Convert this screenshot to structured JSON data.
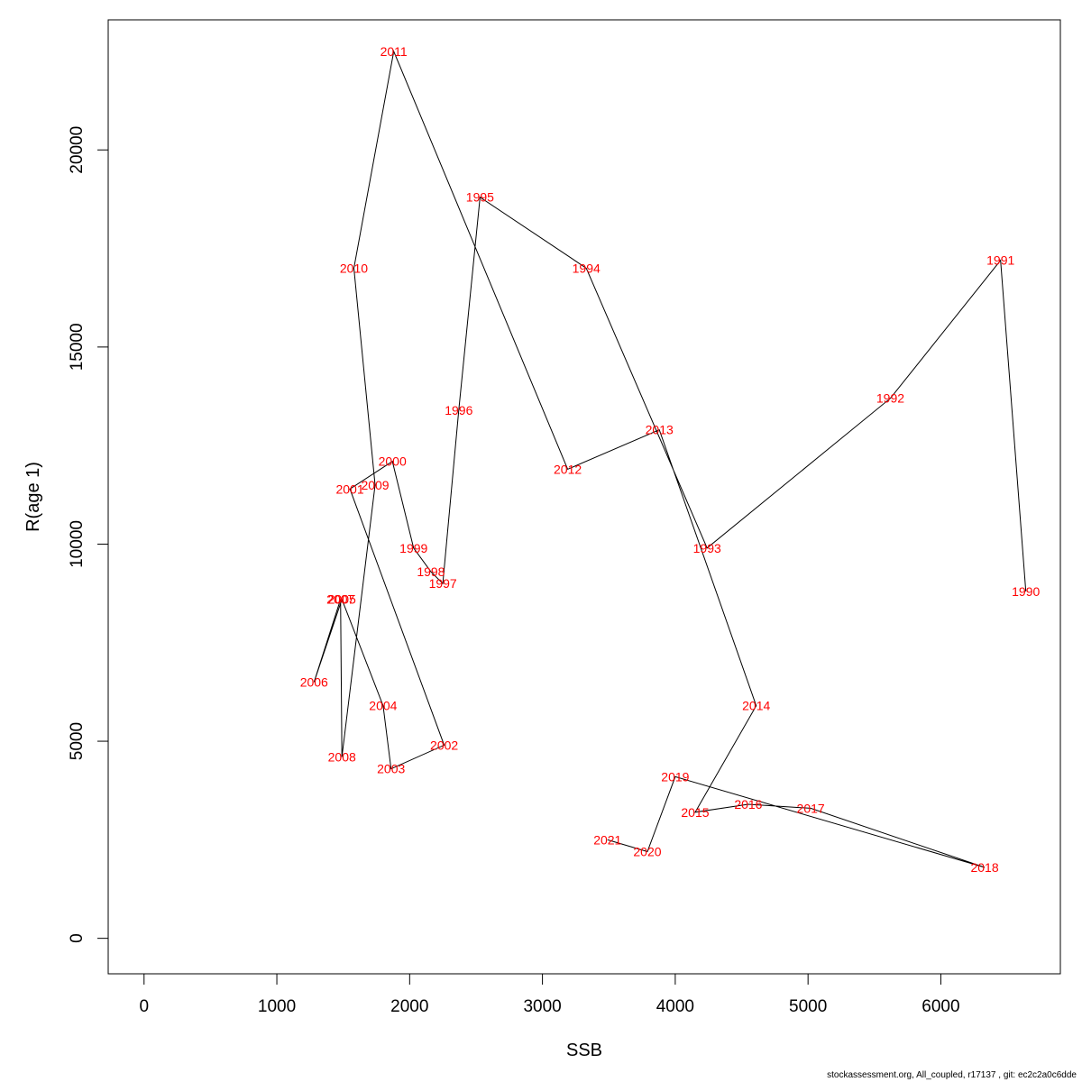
{
  "chart_data": {
    "type": "line",
    "xlabel": "SSB",
    "ylabel": "R(age 1)",
    "xlim": [
      -270,
      6900
    ],
    "ylim": [
      -900,
      23300
    ],
    "x_ticks": [
      0,
      1000,
      2000,
      3000,
      4000,
      5000,
      6000
    ],
    "y_ticks": [
      0,
      5000,
      10000,
      15000,
      20000
    ],
    "grid": false,
    "line_color": "#000000",
    "label_color": "#ff0000",
    "points": [
      {
        "label": "1990",
        "x": 6640,
        "y": 8800
      },
      {
        "label": "1991",
        "x": 6450,
        "y": 17200
      },
      {
        "label": "1992",
        "x": 5620,
        "y": 13700
      },
      {
        "label": "1993",
        "x": 4240,
        "y": 9900
      },
      {
        "label": "1994",
        "x": 3330,
        "y": 17000
      },
      {
        "label": "1995",
        "x": 2530,
        "y": 18800
      },
      {
        "label": "1996",
        "x": 2370,
        "y": 13400
      },
      {
        "label": "1997",
        "x": 2250,
        "y": 9000
      },
      {
        "label": "1998",
        "x": 2160,
        "y": 9300
      },
      {
        "label": "1999",
        "x": 2030,
        "y": 9900
      },
      {
        "label": "2000",
        "x": 1870,
        "y": 12100
      },
      {
        "label": "2001",
        "x": 1550,
        "y": 11400
      },
      {
        "label": "2002",
        "x": 2260,
        "y": 4900
      },
      {
        "label": "2003",
        "x": 1860,
        "y": 4300
      },
      {
        "label": "2004",
        "x": 1800,
        "y": 5900
      },
      {
        "label": "2005",
        "x": 1490,
        "y": 8600
      },
      {
        "label": "2006",
        "x": 1280,
        "y": 6500
      },
      {
        "label": "2007",
        "x": 1480,
        "y": 8600
      },
      {
        "label": "2008",
        "x": 1490,
        "y": 4600
      },
      {
        "label": "2009",
        "x": 1740,
        "y": 11500
      },
      {
        "label": "2010",
        "x": 1580,
        "y": 17000
      },
      {
        "label": "2011",
        "x": 1880,
        "y": 22500
      },
      {
        "label": "2012",
        "x": 3190,
        "y": 11900
      },
      {
        "label": "2013",
        "x": 3880,
        "y": 12900
      },
      {
        "label": "2014",
        "x": 4610,
        "y": 5900
      },
      {
        "label": "2015",
        "x": 4150,
        "y": 3200
      },
      {
        "label": "2016",
        "x": 4550,
        "y": 3400
      },
      {
        "label": "2017",
        "x": 5020,
        "y": 3300
      },
      {
        "label": "2018",
        "x": 6330,
        "y": 1800
      },
      {
        "label": "2019",
        "x": 4000,
        "y": 4100
      },
      {
        "label": "2020",
        "x": 3790,
        "y": 2200
      },
      {
        "label": "2021",
        "x": 3490,
        "y": 2500
      }
    ]
  },
  "footer": "stockassessment.org, All_coupled, r17137 , git: ec2c2a0c6dde"
}
